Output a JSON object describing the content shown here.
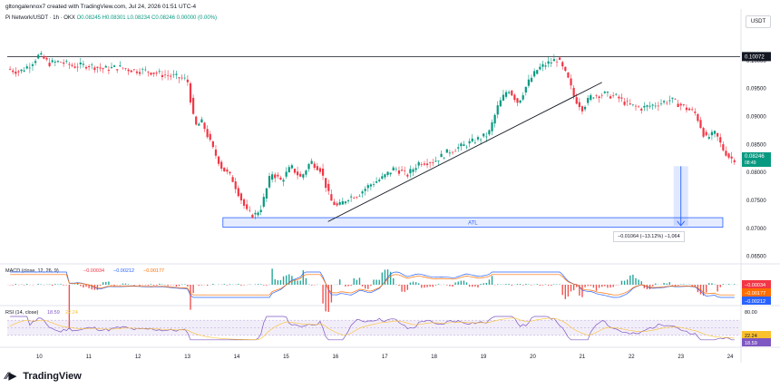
{
  "header": {
    "caption": "gltongalennox7 created with TradingView.com, Jul 24, 2026 01:51 UTC-4",
    "symbol": "Pi Network/USDT · 1h · OKX",
    "ohlc": "O0.08245 H0.08301 L0.08234 C0.08246 0.00000 (0.00%)",
    "currency_button": "USDT"
  },
  "brand": {
    "name": "TradingView",
    "logo": "tradingview-logo-icon"
  },
  "chart_data": {
    "type": "candlestick",
    "symbol": "Pi Network/USDT",
    "interval": "1h",
    "exchange": "OKX",
    "price_axis": {
      "ticks": [
        0.1,
        0.095,
        0.09,
        0.085,
        0.08,
        0.075,
        0.07,
        0.065
      ],
      "labels": [
        "0.10000",
        "0.09500",
        "0.09000",
        "0.08500",
        "0.08000",
        "0.07500",
        "0.07000",
        "0.06500"
      ],
      "range": [
        0.0638,
        0.1063
      ]
    },
    "x_axis": {
      "labels": [
        "10",
        "11",
        "12",
        "13",
        "14",
        "15",
        "16",
        "17",
        "18",
        "19",
        "20",
        "21",
        "22",
        "23",
        "24"
      ],
      "range": [
        9.35,
        24.2
      ]
    },
    "current_price": {
      "value": "0.08246",
      "countdown": "08:49",
      "color": "#089981"
    },
    "resistance": {
      "value": 0.10072,
      "label": "0.10072"
    },
    "atl_zone": {
      "label": "ATL",
      "low": 0.0702,
      "high": 0.0719,
      "from_day": 13.72,
      "to_day": 23.85
    },
    "trendline": {
      "from": {
        "day": 15.85,
        "price": 0.0712
      },
      "to": {
        "day": 21.4,
        "price": 0.0961
      }
    },
    "measure": {
      "label": "−0.01064 (−13.12%) −1,064",
      "from_price": 0.0811,
      "to_price": 0.07046,
      "day": 23.0
    },
    "path": [
      [
        9.35,
        0.0985
      ],
      [
        9.6,
        0.098
      ],
      [
        9.8,
        0.0992
      ],
      [
        10.0,
        0.101
      ],
      [
        10.2,
        0.0995
      ],
      [
        10.4,
        0.0998
      ],
      [
        10.7,
        0.099
      ],
      [
        11.0,
        0.0992
      ],
      [
        11.3,
        0.0985
      ],
      [
        11.6,
        0.0988
      ],
      [
        11.9,
        0.0983
      ],
      [
        12.2,
        0.0981
      ],
      [
        12.5,
        0.0975
      ],
      [
        12.8,
        0.097
      ],
      [
        13.0,
        0.0965
      ],
      [
        13.15,
        0.0882
      ],
      [
        13.3,
        0.089
      ],
      [
        13.5,
        0.0845
      ],
      [
        13.7,
        0.0808
      ],
      [
        13.9,
        0.079
      ],
      [
        14.05,
        0.076
      ],
      [
        14.2,
        0.073
      ],
      [
        14.35,
        0.0722
      ],
      [
        14.5,
        0.0738
      ],
      [
        14.7,
        0.08
      ],
      [
        14.9,
        0.0785
      ],
      [
        15.1,
        0.081
      ],
      [
        15.3,
        0.079
      ],
      [
        15.5,
        0.082
      ],
      [
        15.7,
        0.0805
      ],
      [
        15.9,
        0.075
      ],
      [
        16.05,
        0.0738
      ],
      [
        16.25,
        0.0755
      ],
      [
        16.45,
        0.076
      ],
      [
        16.7,
        0.0778
      ],
      [
        16.95,
        0.079
      ],
      [
        17.2,
        0.0808
      ],
      [
        17.45,
        0.0795
      ],
      [
        17.7,
        0.0818
      ],
      [
        18.0,
        0.082
      ],
      [
        18.3,
        0.0838
      ],
      [
        18.6,
        0.0848
      ],
      [
        18.9,
        0.086
      ],
      [
        19.1,
        0.0868
      ],
      [
        19.3,
        0.092
      ],
      [
        19.5,
        0.095
      ],
      [
        19.7,
        0.0925
      ],
      [
        19.9,
        0.096
      ],
      [
        20.1,
        0.0985
      ],
      [
        20.3,
        0.0995
      ],
      [
        20.5,
        0.1003
      ],
      [
        20.7,
        0.097
      ],
      [
        20.85,
        0.0932
      ],
      [
        21.0,
        0.0915
      ],
      [
        21.2,
        0.0938
      ],
      [
        21.45,
        0.094
      ],
      [
        21.7,
        0.0935
      ],
      [
        21.95,
        0.092
      ],
      [
        22.2,
        0.0915
      ],
      [
        22.5,
        0.0922
      ],
      [
        22.8,
        0.093
      ],
      [
        23.0,
        0.092
      ],
      [
        23.3,
        0.0905
      ],
      [
        23.5,
        0.086
      ],
      [
        23.7,
        0.087
      ],
      [
        23.85,
        0.0842
      ],
      [
        24.0,
        0.0825
      ],
      [
        24.1,
        0.0824
      ]
    ],
    "macd": {
      "label": "MACD (close, 12, 26, 9)",
      "values": [
        "−0.00034",
        "−0.00212",
        "−0.00177"
      ],
      "colors": [
        "#f23645",
        "#2962ff",
        "#ff6d00"
      ],
      "axis_labels": [
        "−0.00034",
        "−0.00177",
        "−0.00212"
      ]
    },
    "rsi": {
      "label": "RSI (14, close)",
      "values": [
        "18.59",
        "22.24"
      ],
      "colors": [
        "#7e57c2",
        "#fbc02d"
      ],
      "bands": {
        "upper": 70,
        "middle": 50,
        "lower": 30
      },
      "axis_labels": [
        "80.00",
        "22.24",
        "18.59"
      ]
    },
    "colors": {
      "up": "#089981",
      "down": "#f23645",
      "zone": "#2962ff",
      "rsi": "#7e57c2"
    }
  }
}
